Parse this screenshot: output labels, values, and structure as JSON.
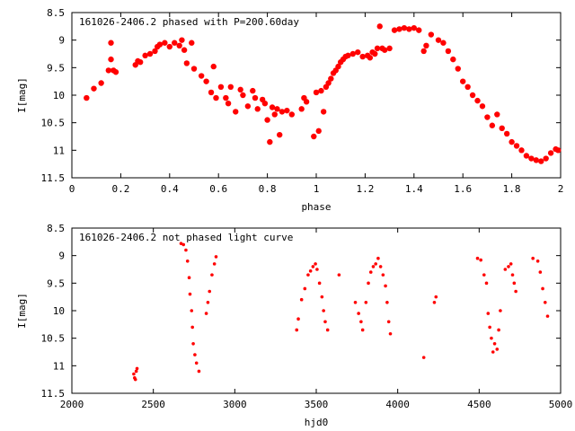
{
  "chart_data": [
    {
      "type": "scatter",
      "title": "161026-2406.2 phased with P=200.60day",
      "xlabel": "phase",
      "ylabel": "I[mag]",
      "xlim": [
        0,
        2
      ],
      "ylim": [
        11.5,
        8.5
      ],
      "y_inverted": true,
      "xticks": [
        "0",
        "0.2",
        "0.4",
        "0.6",
        "0.8",
        "1",
        "1.2",
        "1.4",
        "1.6",
        "1.8",
        "2"
      ],
      "xtick_values": [
        0,
        0.2,
        0.4,
        0.6,
        0.8,
        1.0,
        1.2,
        1.4,
        1.6,
        1.8,
        2.0
      ],
      "yticks": [
        "8.5",
        "9",
        "9.5",
        "10",
        "10.5",
        "11",
        "11.5"
      ],
      "ytick_values": [
        8.5,
        9,
        9.5,
        10,
        10.5,
        11,
        11.5
      ],
      "marker_color": "#ff0000",
      "marker_size": "large",
      "points": [
        [
          0.06,
          10.05
        ],
        [
          0.09,
          9.88
        ],
        [
          0.12,
          9.78
        ],
        [
          0.15,
          9.55
        ],
        [
          0.16,
          9.05
        ],
        [
          0.16,
          9.35
        ],
        [
          0.17,
          9.55
        ],
        [
          0.18,
          9.58
        ],
        [
          0.26,
          9.45
        ],
        [
          0.27,
          9.38
        ],
        [
          0.28,
          9.4
        ],
        [
          0.3,
          9.28
        ],
        [
          0.32,
          9.25
        ],
        [
          0.34,
          9.2
        ],
        [
          0.35,
          9.12
        ],
        [
          0.36,
          9.08
        ],
        [
          0.38,
          9.05
        ],
        [
          0.4,
          9.12
        ],
        [
          0.42,
          9.05
        ],
        [
          0.44,
          9.1
        ],
        [
          0.45,
          9.0
        ],
        [
          0.46,
          9.18
        ],
        [
          0.47,
          9.42
        ],
        [
          0.49,
          9.05
        ],
        [
          0.5,
          9.52
        ],
        [
          0.53,
          9.65
        ],
        [
          0.55,
          9.75
        ],
        [
          0.57,
          9.95
        ],
        [
          0.58,
          9.48
        ],
        [
          0.59,
          10.05
        ],
        [
          0.61,
          9.85
        ],
        [
          0.63,
          10.05
        ],
        [
          0.64,
          10.15
        ],
        [
          0.65,
          9.85
        ],
        [
          0.67,
          10.3
        ],
        [
          0.69,
          9.9
        ],
        [
          0.7,
          10.0
        ],
        [
          0.72,
          10.2
        ],
        [
          0.74,
          9.92
        ],
        [
          0.75,
          10.05
        ],
        [
          0.76,
          10.25
        ],
        [
          0.78,
          10.08
        ],
        [
          0.79,
          10.15
        ],
        [
          0.8,
          10.45
        ],
        [
          0.81,
          10.85
        ],
        [
          0.82,
          10.22
        ],
        [
          0.83,
          10.35
        ],
        [
          0.84,
          10.25
        ],
        [
          0.85,
          10.72
        ],
        [
          0.86,
          10.3
        ],
        [
          0.88,
          10.28
        ],
        [
          0.9,
          10.35
        ],
        [
          0.94,
          10.25
        ],
        [
          0.95,
          10.05
        ],
        [
          0.96,
          10.12
        ],
        [
          0.99,
          10.75
        ],
        [
          1.0,
          9.95
        ],
        [
          1.01,
          10.65
        ],
        [
          1.02,
          9.92
        ],
        [
          1.03,
          10.3
        ],
        [
          1.04,
          9.85
        ],
        [
          1.05,
          9.78
        ],
        [
          1.06,
          9.7
        ],
        [
          1.07,
          9.6
        ],
        [
          1.08,
          9.55
        ],
        [
          1.09,
          9.48
        ],
        [
          1.1,
          9.4
        ],
        [
          1.11,
          9.35
        ],
        [
          1.12,
          9.3
        ],
        [
          1.13,
          9.28
        ],
        [
          1.15,
          9.25
        ],
        [
          1.17,
          9.22
        ],
        [
          1.19,
          9.3
        ],
        [
          1.21,
          9.28
        ],
        [
          1.22,
          9.32
        ],
        [
          1.23,
          9.22
        ],
        [
          1.24,
          9.25
        ],
        [
          1.25,
          9.15
        ],
        [
          1.26,
          8.75
        ],
        [
          1.27,
          9.15
        ],
        [
          1.28,
          9.18
        ],
        [
          1.3,
          9.15
        ],
        [
          1.32,
          8.82
        ],
        [
          1.34,
          8.8
        ],
        [
          1.36,
          8.78
        ],
        [
          1.38,
          8.8
        ],
        [
          1.4,
          8.78
        ],
        [
          1.42,
          8.82
        ],
        [
          1.44,
          9.2
        ],
        [
          1.45,
          9.1
        ],
        [
          1.47,
          8.9
        ],
        [
          1.5,
          9.0
        ],
        [
          1.52,
          9.05
        ],
        [
          1.54,
          9.2
        ],
        [
          1.56,
          9.35
        ],
        [
          1.58,
          9.52
        ],
        [
          1.6,
          9.75
        ],
        [
          1.62,
          9.85
        ],
        [
          1.64,
          10.0
        ],
        [
          1.66,
          10.1
        ],
        [
          1.68,
          10.2
        ],
        [
          1.7,
          10.4
        ],
        [
          1.72,
          10.55
        ],
        [
          1.74,
          10.35
        ],
        [
          1.76,
          10.6
        ],
        [
          1.78,
          10.7
        ],
        [
          1.8,
          10.85
        ],
        [
          1.82,
          10.92
        ],
        [
          1.84,
          11.0
        ],
        [
          1.86,
          11.1
        ],
        [
          1.88,
          11.15
        ],
        [
          1.9,
          11.18
        ],
        [
          1.92,
          11.2
        ],
        [
          1.94,
          11.15
        ],
        [
          1.96,
          11.05
        ],
        [
          1.98,
          10.98
        ],
        [
          1.99,
          11.0
        ]
      ]
    },
    {
      "type": "scatter",
      "title": "161026-2406.2 not phased light curve",
      "xlabel": "hjd0",
      "ylabel": "I[mag]",
      "xlim": [
        2000,
        5000
      ],
      "ylim": [
        11.5,
        8.5
      ],
      "y_inverted": true,
      "xticks": [
        "2000",
        "2500",
        "3000",
        "3500",
        "4000",
        "4500",
        "5000"
      ],
      "xtick_values": [
        2000,
        2500,
        3000,
        3500,
        4000,
        4500,
        5000
      ],
      "yticks": [
        "8.5",
        "9",
        "9.5",
        "10",
        "10.5",
        "11",
        "11.5"
      ],
      "ytick_values": [
        8.5,
        9,
        9.5,
        10,
        10.5,
        11,
        11.5
      ],
      "marker_color": "#ff0000",
      "marker_size": "small",
      "points": [
        [
          2380,
          11.15
        ],
        [
          2385,
          11.22
        ],
        [
          2390,
          11.25
        ],
        [
          2395,
          11.1
        ],
        [
          2400,
          11.05
        ],
        [
          2670,
          8.78
        ],
        [
          2685,
          8.8
        ],
        [
          2700,
          8.9
        ],
        [
          2710,
          9.1
        ],
        [
          2720,
          9.4
        ],
        [
          2725,
          9.7
        ],
        [
          2735,
          10.0
        ],
        [
          2740,
          10.3
        ],
        [
          2745,
          10.6
        ],
        [
          2755,
          10.8
        ],
        [
          2765,
          10.95
        ],
        [
          2780,
          11.1
        ],
        [
          2825,
          10.05
        ],
        [
          2835,
          9.85
        ],
        [
          2845,
          9.65
        ],
        [
          2860,
          9.35
        ],
        [
          2875,
          9.15
        ],
        [
          2885,
          9.02
        ],
        [
          3380,
          10.35
        ],
        [
          3390,
          10.15
        ],
        [
          3410,
          9.8
        ],
        [
          3430,
          9.6
        ],
        [
          3450,
          9.35
        ],
        [
          3465,
          9.28
        ],
        [
          3480,
          9.2
        ],
        [
          3495,
          9.15
        ],
        [
          3505,
          9.25
        ],
        [
          3520,
          9.5
        ],
        [
          3535,
          9.75
        ],
        [
          3545,
          10.0
        ],
        [
          3555,
          10.2
        ],
        [
          3570,
          10.35
        ],
        [
          3640,
          9.35
        ],
        [
          3740,
          9.85
        ],
        [
          3760,
          10.05
        ],
        [
          3775,
          10.2
        ],
        [
          3785,
          10.35
        ],
        [
          3805,
          9.85
        ],
        [
          3820,
          9.5
        ],
        [
          3835,
          9.3
        ],
        [
          3850,
          9.2
        ],
        [
          3865,
          9.15
        ],
        [
          3880,
          9.05
        ],
        [
          3895,
          9.2
        ],
        [
          3910,
          9.35
        ],
        [
          3925,
          9.55
        ],
        [
          3935,
          9.85
        ],
        [
          3945,
          10.2
        ],
        [
          3955,
          10.42
        ],
        [
          4160,
          10.85
        ],
        [
          4225,
          9.85
        ],
        [
          4235,
          9.75
        ],
        [
          4490,
          9.05
        ],
        [
          4510,
          9.08
        ],
        [
          4530,
          9.35
        ],
        [
          4545,
          9.5
        ],
        [
          4555,
          10.05
        ],
        [
          4565,
          10.3
        ],
        [
          4575,
          10.5
        ],
        [
          4585,
          10.75
        ],
        [
          4595,
          10.6
        ],
        [
          4610,
          10.7
        ],
        [
          4620,
          10.35
        ],
        [
          4630,
          10.0
        ],
        [
          4660,
          9.25
        ],
        [
          4680,
          9.2
        ],
        [
          4695,
          9.15
        ],
        [
          4705,
          9.35
        ],
        [
          4715,
          9.5
        ],
        [
          4725,
          9.65
        ],
        [
          4830,
          9.05
        ],
        [
          4860,
          9.1
        ],
        [
          4875,
          9.3
        ],
        [
          4890,
          9.6
        ],
        [
          4905,
          9.85
        ],
        [
          4920,
          10.1
        ]
      ]
    }
  ]
}
